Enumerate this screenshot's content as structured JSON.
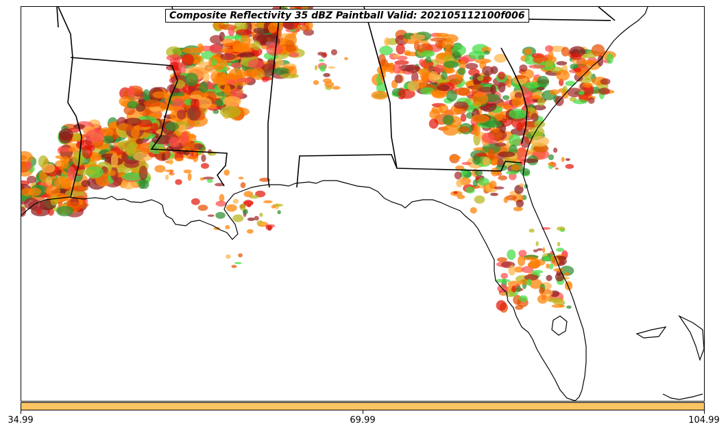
{
  "title": "Composite Reflectivity 35 dBZ Paintball Valid: 202105112100f006",
  "colorbar": {
    "color": "#fdc462",
    "ticks": [
      "34.99",
      "69.99",
      "104.99"
    ]
  },
  "colors": {
    "orange": "#ff7f00",
    "dark_orange": "#e65100",
    "red": "#e3170a",
    "light_red": "#ff4d4d",
    "dark_red": "#a52a2a",
    "green": "#2f8f2f",
    "light_green": "#44dd44",
    "olive": "#b5b51a",
    "light_orange": "#ffb347",
    "maroon": "#8b1a1a"
  },
  "map_region": "Southeastern United States (Louisiana to Florida / South Carolina)"
}
